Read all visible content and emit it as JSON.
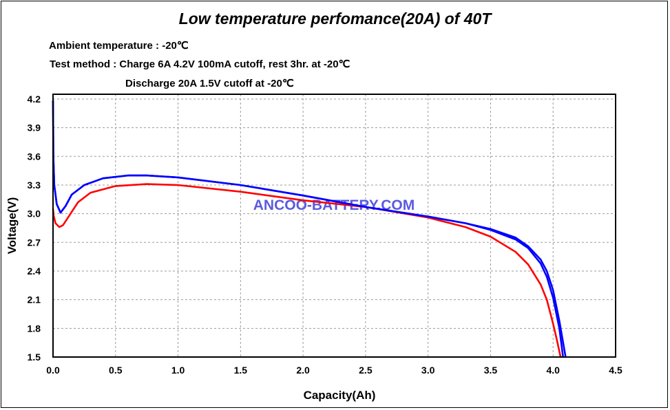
{
  "chart_data": {
    "type": "line",
    "title": "Low temperature perfomance(20A) of 40T",
    "notes": [
      "Ambient temperature : -20℃",
      "Test method : Charge  6A 4.2V 100mA cutoff, rest 3hr. at -20℃",
      "Discharge  20A 1.5V cutoff at -20℃"
    ],
    "watermark": "ANCOO-BATTERY.COM",
    "xlabel": "Capacity(Ah)",
    "ylabel": "Voltage(V)",
    "xlim": [
      0,
      4.5
    ],
    "ylim": [
      1.5,
      4.25
    ],
    "xticks": [
      "0.0",
      "0.5",
      "1.0",
      "1.5",
      "2.0",
      "2.5",
      "3.0",
      "3.5",
      "4.0",
      "4.5"
    ],
    "yticks": [
      "1.5",
      "1.8",
      "2.1",
      "2.4",
      "2.7",
      "3.0",
      "3.3",
      "3.6",
      "3.9",
      "4.2"
    ],
    "grid": true,
    "series": [
      {
        "color": "#ff0000",
        "x": [
          0.0,
          0.005,
          0.02,
          0.05,
          0.08,
          0.12,
          0.2,
          0.3,
          0.5,
          0.75,
          1.0,
          1.5,
          2.0,
          2.5,
          3.0,
          3.3,
          3.5,
          3.7,
          3.8,
          3.9,
          3.95,
          4.0,
          4.03,
          4.06
        ],
        "y": [
          3.05,
          2.98,
          2.9,
          2.86,
          2.88,
          2.96,
          3.12,
          3.22,
          3.29,
          3.31,
          3.3,
          3.23,
          3.14,
          3.07,
          2.96,
          2.86,
          2.76,
          2.6,
          2.47,
          2.26,
          2.1,
          1.85,
          1.68,
          1.5
        ]
      },
      {
        "color": "#0000ff",
        "x": [
          0.0,
          0.003,
          0.01,
          0.03,
          0.06,
          0.1,
          0.15,
          0.25,
          0.4,
          0.6,
          0.75,
          1.0,
          1.5,
          2.0,
          2.5,
          3.0,
          3.3,
          3.5,
          3.7,
          3.8,
          3.9,
          3.95,
          4.0,
          4.05,
          4.08
        ],
        "y": [
          4.18,
          3.6,
          3.3,
          3.1,
          3.01,
          3.08,
          3.2,
          3.3,
          3.37,
          3.4,
          3.4,
          3.38,
          3.3,
          3.19,
          3.07,
          2.97,
          2.9,
          2.83,
          2.73,
          2.64,
          2.48,
          2.34,
          2.12,
          1.8,
          1.5
        ]
      },
      {
        "color": "#0000ff",
        "x": [
          0.0,
          0.003,
          0.01,
          0.03,
          0.06,
          0.1,
          0.15,
          0.25,
          0.4,
          0.6,
          0.75,
          1.0,
          1.5,
          2.0,
          2.5,
          3.0,
          3.3,
          3.5,
          3.7,
          3.8,
          3.9,
          3.95,
          4.0,
          4.05,
          4.1
        ],
        "y": [
          4.18,
          3.6,
          3.3,
          3.1,
          3.01,
          3.08,
          3.2,
          3.3,
          3.37,
          3.4,
          3.4,
          3.38,
          3.3,
          3.19,
          3.07,
          2.97,
          2.9,
          2.84,
          2.75,
          2.66,
          2.52,
          2.4,
          2.2,
          1.88,
          1.5
        ]
      }
    ]
  }
}
